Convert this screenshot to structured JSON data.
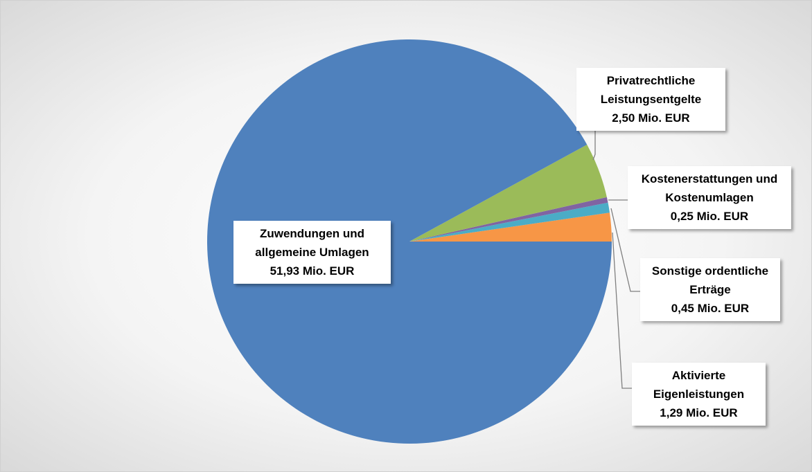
{
  "chart_data": {
    "type": "pie",
    "categories": [
      "Aktivierte Eigenleistungen",
      "Sonstige ordentliche Erträge",
      "Kostenerstattungen und Kostenumlagen",
      "Privatrechtliche Leistungsentgelte",
      "Zuwendungen und allgemeine Umlagen"
    ],
    "values": [
      1.29,
      0.45,
      0.25,
      2.5,
      51.93
    ],
    "value_labels": [
      "1,29 Mio. EUR",
      "0,45 Mio. EUR",
      "0,25 Mio. EUR",
      "2,50 Mio. EUR",
      "51,93 Mio. EUR"
    ],
    "colors": [
      "#f79646",
      "#4bacc6",
      "#8064a2",
      "#9bbb59",
      "#4f81bd"
    ]
  }
}
